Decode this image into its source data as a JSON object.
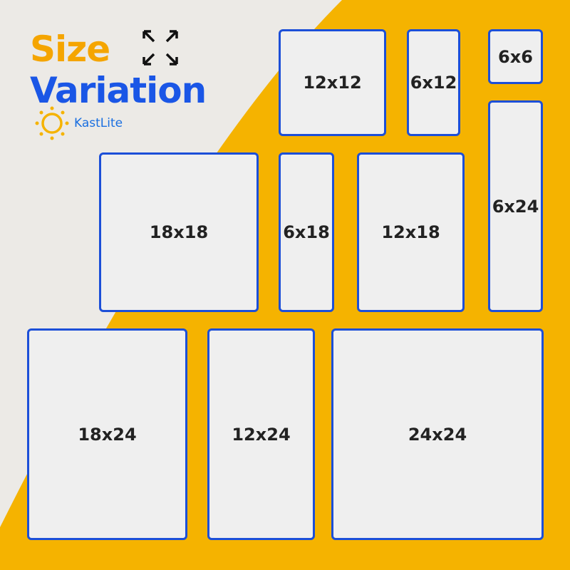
{
  "title_line1": "Size",
  "title_line2": "Variation",
  "brand": "KastLite",
  "icons": [
    "expand-arrows-icon",
    "sun-logo-icon"
  ],
  "colors": {
    "yellow": "#f5b300",
    "blue": "#1c4fd8",
    "title_orange": "#f5a500",
    "title_blue": "#1a56e6",
    "panel": "#efefef"
  },
  "sizes": {
    "s12x12": "12x12",
    "s6x12": "6x12",
    "s6x6": "6x6",
    "s6x24": "6x24",
    "s18x18": "18x18",
    "s6x18": "6x18",
    "s12x18": "12x18",
    "s18x24": "18x24",
    "s12x24": "12x24",
    "s24x24": "24x24"
  }
}
